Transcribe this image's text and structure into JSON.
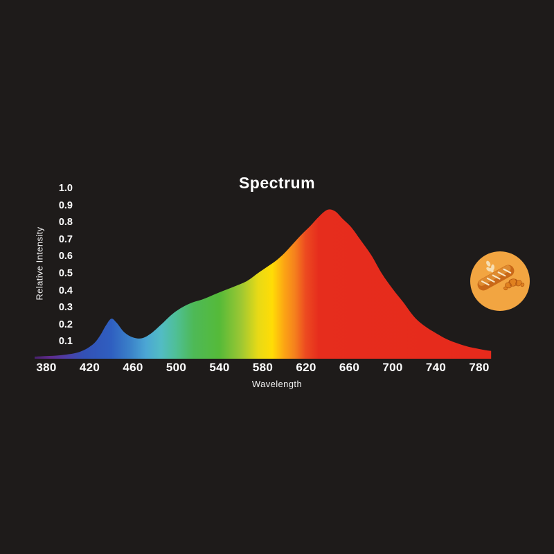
{
  "page": {
    "background": "#1e1b1a",
    "text_color": "#ffffff"
  },
  "chart_data": {
    "type": "area",
    "title": "Spectrum",
    "xlabel": "Wavelength",
    "ylabel": "Relative Intensity",
    "xlim": [
      368,
      792
    ],
    "ylim": [
      0,
      1.05
    ],
    "grid": false,
    "legend": false,
    "x_ticks": [
      "380",
      "420",
      "460",
      "500",
      "540",
      "580",
      "620",
      "660",
      "700",
      "740",
      "780"
    ],
    "y_ticks": [
      "1.0",
      "0.9",
      "0.8",
      "0.7",
      "0.6",
      "0.5",
      "0.4",
      "0.3",
      "0.2",
      "0.1"
    ],
    "series": [
      {
        "name": "relative_intensity",
        "points": [
          [
            369,
            0.012
          ],
          [
            378,
            0.015
          ],
          [
            388,
            0.018
          ],
          [
            398,
            0.024
          ],
          [
            408,
            0.035
          ],
          [
            416,
            0.055
          ],
          [
            424,
            0.09
          ],
          [
            430,
            0.14
          ],
          [
            435,
            0.195
          ],
          [
            440,
            0.235
          ],
          [
            445,
            0.21
          ],
          [
            452,
            0.155
          ],
          [
            460,
            0.125
          ],
          [
            468,
            0.12
          ],
          [
            476,
            0.145
          ],
          [
            486,
            0.2
          ],
          [
            496,
            0.26
          ],
          [
            505,
            0.3
          ],
          [
            515,
            0.33
          ],
          [
            525,
            0.35
          ],
          [
            540,
            0.39
          ],
          [
            552,
            0.42
          ],
          [
            565,
            0.455
          ],
          [
            575,
            0.5
          ],
          [
            583,
            0.535
          ],
          [
            592,
            0.575
          ],
          [
            600,
            0.62
          ],
          [
            608,
            0.675
          ],
          [
            616,
            0.73
          ],
          [
            624,
            0.78
          ],
          [
            632,
            0.835
          ],
          [
            640,
            0.875
          ],
          [
            647,
            0.865
          ],
          [
            654,
            0.82
          ],
          [
            662,
            0.77
          ],
          [
            670,
            0.7
          ],
          [
            680,
            0.61
          ],
          [
            690,
            0.5
          ],
          [
            700,
            0.41
          ],
          [
            710,
            0.33
          ],
          [
            720,
            0.245
          ],
          [
            730,
            0.19
          ],
          [
            740,
            0.15
          ],
          [
            750,
            0.115
          ],
          [
            760,
            0.09
          ],
          [
            770,
            0.07
          ],
          [
            780,
            0.057
          ],
          [
            786,
            0.05
          ],
          [
            791,
            0.046
          ]
        ]
      }
    ],
    "fill_style": "visible-light-spectrum-gradient",
    "gradient_stops": [
      [
        369,
        "#47216b"
      ],
      [
        383,
        "#5f2b8d"
      ],
      [
        398,
        "#4f3da5"
      ],
      [
        414,
        "#3350b4"
      ],
      [
        440,
        "#2f5fc0"
      ],
      [
        458,
        "#3b82c9"
      ],
      [
        472,
        "#4ba6d4"
      ],
      [
        486,
        "#52bcc4"
      ],
      [
        500,
        "#4fbf96"
      ],
      [
        516,
        "#4eb957"
      ],
      [
        540,
        "#55ba39"
      ],
      [
        560,
        "#9cc733"
      ],
      [
        576,
        "#e8da16"
      ],
      [
        589,
        "#ffdc06"
      ],
      [
        600,
        "#fca514"
      ],
      [
        610,
        "#f5801d"
      ],
      [
        620,
        "#ec4a20"
      ],
      [
        632,
        "#e62d1d"
      ],
      [
        791,
        "#e62a1c"
      ]
    ],
    "annotations": []
  },
  "badge": {
    "icon": "bakery-baguette-croissant-icon",
    "colors": {
      "circle": "#f2a541",
      "bread": "#c96818",
      "bread_highlight": "#de8b30",
      "slash": "#f8e7c6",
      "croissant": "#e0811f",
      "croissant_dark": "#b25712",
      "wheat": "#f6deb3"
    }
  }
}
